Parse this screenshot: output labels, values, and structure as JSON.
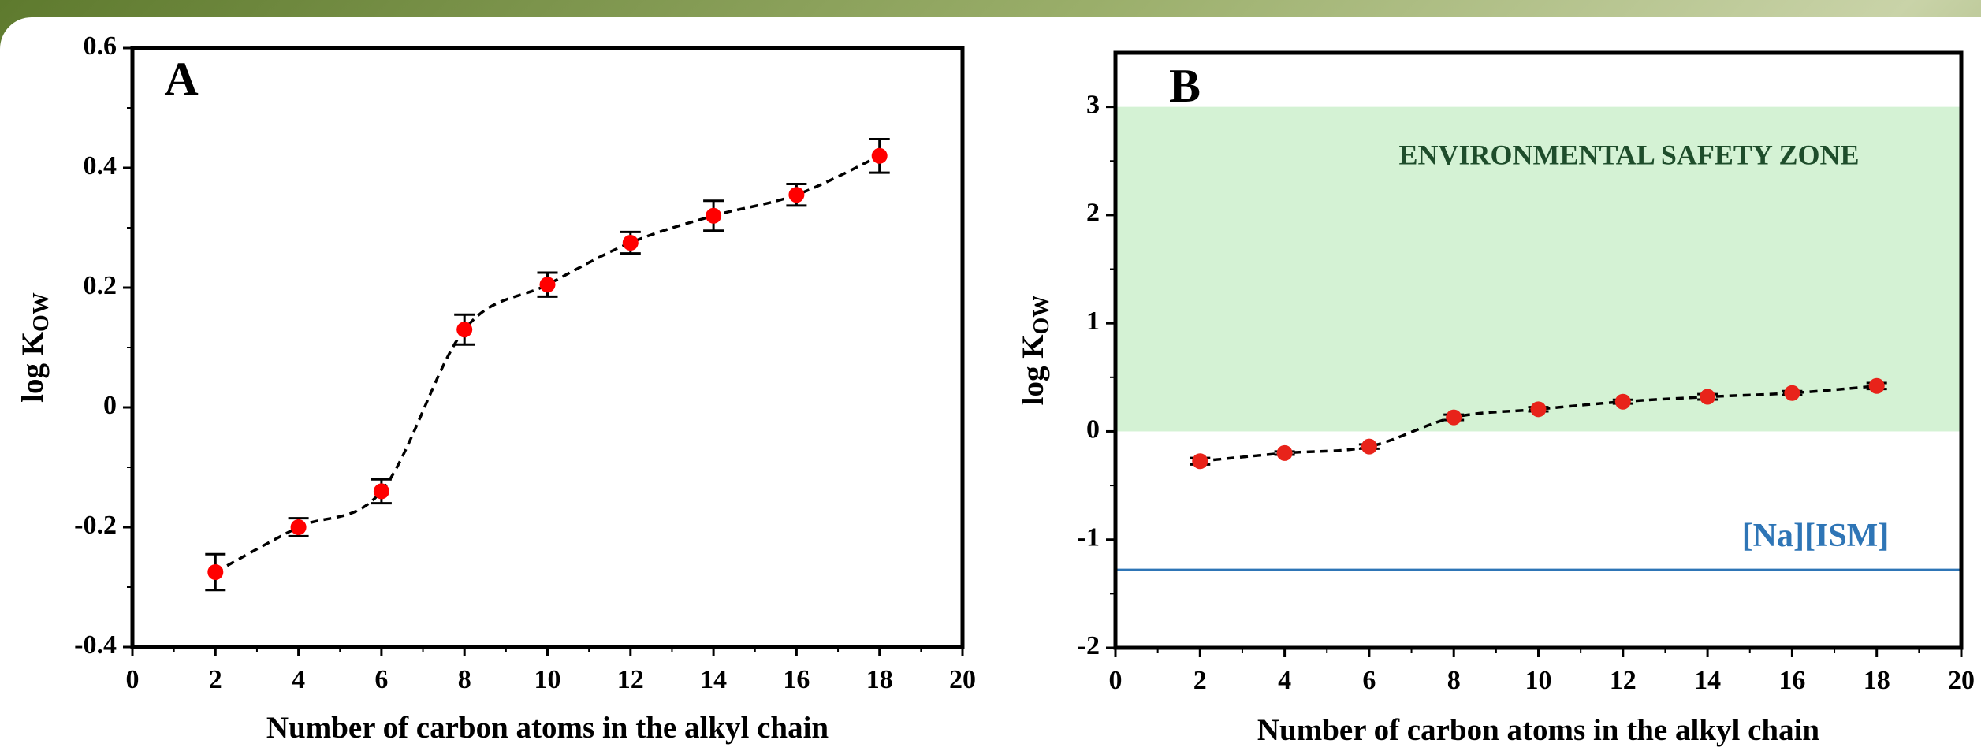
{
  "chart_data": [
    {
      "type": "scatter",
      "panel_label": "A",
      "xlabel": "Number of carbon atoms in the alkyl chain",
      "ylabel": "log K",
      "ylabel_sub": "OW",
      "x": [
        2,
        4,
        6,
        8,
        10,
        12,
        14,
        16,
        18
      ],
      "values": [
        -0.275,
        -0.2,
        -0.14,
        0.13,
        0.205,
        0.275,
        0.32,
        0.355,
        0.42
      ],
      "errors": [
        0.03,
        0.015,
        0.02,
        0.025,
        0.02,
        0.018,
        0.025,
        0.018,
        0.028
      ],
      "color": "#ff0000",
      "xlim": [
        0,
        20
      ],
      "xticks": [
        0,
        2,
        4,
        6,
        8,
        10,
        12,
        14,
        16,
        18,
        20
      ],
      "ylim": [
        -0.4,
        0.6
      ],
      "yticks": [
        -0.4,
        -0.2,
        0,
        0.2,
        0.4,
        0.6
      ]
    },
    {
      "type": "scatter",
      "panel_label": "B",
      "xlabel": "Number of carbon atoms in the alkyl chain",
      "ylabel": "log K",
      "ylabel_sub": "OW",
      "x": [
        2,
        4,
        6,
        8,
        10,
        12,
        14,
        16,
        18
      ],
      "values": [
        -0.275,
        -0.2,
        -0.14,
        0.13,
        0.205,
        0.275,
        0.32,
        0.355,
        0.42
      ],
      "errors": [
        0.03,
        0.015,
        0.02,
        0.025,
        0.02,
        0.018,
        0.025,
        0.018,
        0.028
      ],
      "color": "#e8231a",
      "xlim": [
        0,
        20
      ],
      "xticks": [
        0,
        2,
        4,
        6,
        8,
        10,
        12,
        14,
        16,
        18,
        20
      ],
      "ylim": [
        -2,
        3.5
      ],
      "yticks": [
        -2,
        -1,
        0,
        1,
        2,
        3
      ],
      "shaded_region": {
        "label": "ENVIRONMENTAL SAFETY ZONE",
        "range": [
          0,
          3
        ],
        "color": "#d4f2d4",
        "label_color": "#1e4d2b"
      },
      "reference_line": {
        "label": "[Na][ISM]",
        "value": -1.28,
        "color": "#2e75b6"
      }
    }
  ]
}
